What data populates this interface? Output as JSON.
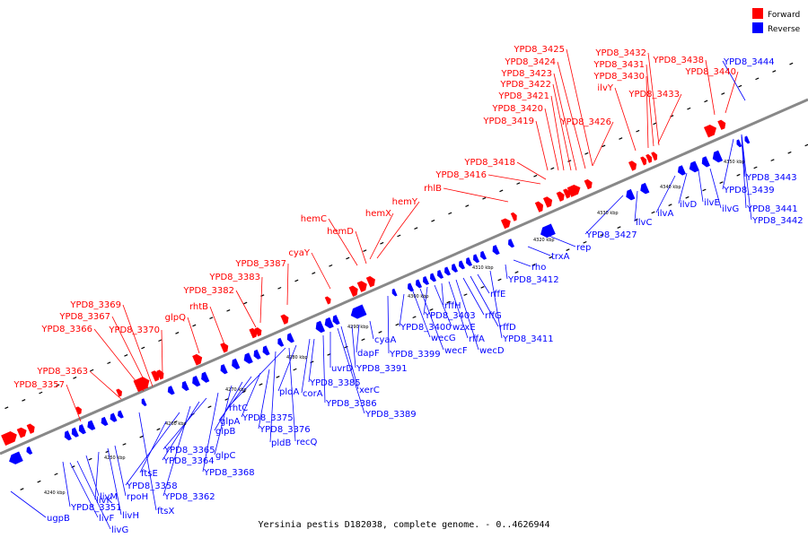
{
  "colors": {
    "forward": "#ff0000",
    "reverse": "#0000ff",
    "backbone": "#888888"
  },
  "legend": {
    "forward": "Forward",
    "reverse": "Reverse"
  },
  "caption": "Yersinia pestis D182038, complete genome. - 0..4626944",
  "scale_labels": [
    "4240 kbp",
    "4250 kbp",
    "4260 kbp",
    "4270 kbp",
    "4280 kbp",
    "4290 kbp",
    "4300 kbp",
    "4310 kbp",
    "4320 kbp",
    "4330 kbp",
    "4340 kbp",
    "4350 kbp"
  ],
  "forward_labels": [
    "YPD8_3357",
    "YPD8_3363",
    "YPD8_3366",
    "YPD8_3367",
    "YPD8_3369",
    "YPD8_3370",
    "glpQ",
    "rhtB",
    "YPD8_3382",
    "YPD8_3383",
    "YPD8_3387",
    "cyaY",
    "hemC",
    "hemD",
    "hemX",
    "hemY",
    "rhlB",
    "YPD8_3416",
    "YPD8_3418",
    "YPD8_3419",
    "YPD8_3420",
    "YPD8_3421",
    "YPD8_3422",
    "YPD8_3423",
    "YPD8_3424",
    "YPD8_3425",
    "YPD8_3426",
    "ilvY",
    "YPD8_3430",
    "YPD8_3431",
    "YPD8_3432",
    "YPD8_3433",
    "YPD8_3438",
    "YPD8_3440"
  ],
  "reverse_labels": [
    "ugpB",
    "YPD8_3351",
    "livF",
    "livG",
    "livM",
    "livK",
    "livH",
    "rpoH",
    "ftsX",
    "ftsE",
    "YPD8_3358",
    "YPD8_3362",
    "YPD8_3364",
    "YPD8_3365",
    "YPD8_3368",
    "glpC",
    "glpB",
    "glpA",
    "YPD8_3375",
    "YPD8_3376",
    "pldB",
    "rhtC",
    "recQ",
    "pldA",
    "corA",
    "YPD8_3385",
    "YPD8_3386",
    "uvrD",
    "YPD8_3389",
    "xerC",
    "YPD8_3391",
    "dapF",
    "cyaA",
    "YPD8_3399",
    "YPD8_3400",
    "wecG",
    "wecF",
    "YPD8_3403",
    "wzxE",
    "rffH",
    "rffA",
    "wecD",
    "rffG",
    "rffD",
    "rffE",
    "YPD8_3411",
    "YPD8_3412",
    "rho",
    "trxA",
    "rep",
    "YPD8_3427",
    "ilvC",
    "ilvA",
    "ilvD",
    "ilvE",
    "ilvG",
    "YPD8_3439",
    "YPD8_3441",
    "YPD8_3442",
    "YPD8_3443",
    "YPD8_3444"
  ]
}
